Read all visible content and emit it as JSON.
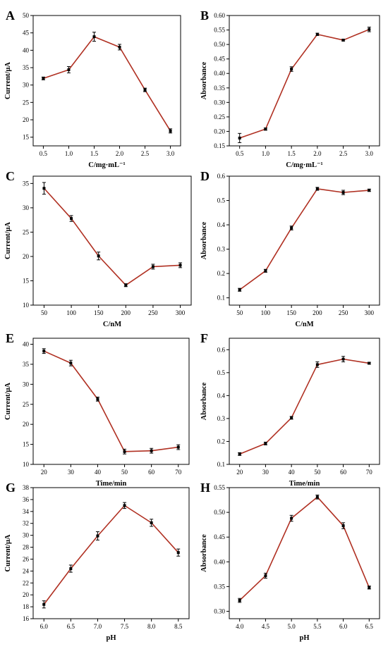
{
  "colors": {
    "line": "#b03022",
    "marker": "#000000",
    "errorbar": "#000000",
    "axis": "#000000",
    "background": "#ffffff"
  },
  "chart_data": [
    {
      "panel": "A",
      "type": "line",
      "xlabel": "C/mg·mL⁻¹",
      "ylabel": "Current/μA",
      "x": [
        0.5,
        1.0,
        1.5,
        2.0,
        2.5,
        3.0
      ],
      "y": [
        31.9,
        34.4,
        43.9,
        40.9,
        28.6,
        16.8
      ],
      "err": [
        0.4,
        0.9,
        1.3,
        0.8,
        0.5,
        0.6
      ],
      "xlim": [
        0.3,
        3.2
      ],
      "ylim": [
        12.5,
        50
      ],
      "xticks": [
        "0.5",
        "1.0",
        "1.5",
        "2.0",
        "2.5",
        "3.0"
      ],
      "yticks": [
        "15",
        "20",
        "25",
        "30",
        "35",
        "40",
        "45",
        "50"
      ],
      "grid": false,
      "legend": "none"
    },
    {
      "panel": "B",
      "type": "line",
      "xlabel": "C/mg·mL⁻¹",
      "ylabel": "Absorbance",
      "x": [
        0.5,
        1.0,
        1.5,
        2.0,
        2.5,
        3.0
      ],
      "y": [
        0.177,
        0.208,
        0.415,
        0.535,
        0.515,
        0.552
      ],
      "err": [
        0.016,
        0.004,
        0.008,
        0.004,
        0.003,
        0.008
      ],
      "xlim": [
        0.3,
        3.2
      ],
      "ylim": [
        0.15,
        0.6
      ],
      "xticks": [
        "0.5",
        "1.0",
        "1.5",
        "2.0",
        "2.5",
        "3.0"
      ],
      "yticks": [
        "0.15",
        "0.20",
        "0.25",
        "0.30",
        "0.35",
        "0.40",
        "0.45",
        "0.50",
        "0.55",
        "0.60"
      ],
      "grid": false,
      "legend": "none"
    },
    {
      "panel": "C",
      "type": "line",
      "xlabel": "C/nM",
      "ylabel": "Current/μA",
      "x": [
        50,
        100,
        150,
        200,
        250,
        300
      ],
      "y": [
        34.0,
        27.8,
        20.1,
        14.1,
        17.9,
        18.2
      ],
      "err": [
        1.2,
        0.6,
        0.8,
        0.3,
        0.5,
        0.5
      ],
      "xlim": [
        30,
        320
      ],
      "ylim": [
        10,
        36.5
      ],
      "xticks": [
        "50",
        "100",
        "150",
        "200",
        "250",
        "300"
      ],
      "yticks": [
        "10",
        "15",
        "20",
        "25",
        "30",
        "35"
      ],
      "grid": false,
      "legend": "none"
    },
    {
      "panel": "D",
      "type": "line",
      "xlabel": "C/nM",
      "ylabel": "Absorbance",
      "x": [
        50,
        100,
        150,
        200,
        250,
        300
      ],
      "y": [
        0.133,
        0.211,
        0.387,
        0.548,
        0.533,
        0.542
      ],
      "err": [
        0.006,
        0.006,
        0.008,
        0.006,
        0.009,
        0.005
      ],
      "xlim": [
        30,
        320
      ],
      "ylim": [
        0.07,
        0.6
      ],
      "xticks": [
        "50",
        "100",
        "150",
        "200",
        "250",
        "300"
      ],
      "yticks": [
        "0.1",
        "0.2",
        "0.3",
        "0.4",
        "0.5",
        "0.6"
      ],
      "grid": false,
      "legend": "none"
    },
    {
      "panel": "E",
      "type": "line",
      "xlabel": "Time/min",
      "ylabel": "Current/μA",
      "x": [
        20,
        30,
        40,
        50,
        60,
        70
      ],
      "y": [
        38.3,
        35.3,
        26.3,
        13.2,
        13.4,
        14.3
      ],
      "err": [
        0.6,
        0.7,
        0.5,
        0.6,
        0.6,
        0.6
      ],
      "xlim": [
        16,
        74
      ],
      "ylim": [
        10,
        41.5
      ],
      "xticks": [
        "20",
        "30",
        "40",
        "50",
        "60",
        "70"
      ],
      "yticks": [
        "10",
        "15",
        "20",
        "25",
        "30",
        "35",
        "40"
      ],
      "grid": false,
      "legend": "none"
    },
    {
      "panel": "F",
      "type": "line",
      "xlabel": "Time/min",
      "ylabel": "Absorbance",
      "x": [
        20,
        30,
        40,
        50,
        60,
        70
      ],
      "y": [
        0.145,
        0.191,
        0.303,
        0.535,
        0.559,
        0.541
      ],
      "err": [
        0.006,
        0.006,
        0.006,
        0.012,
        0.012,
        0.004
      ],
      "xlim": [
        16,
        74
      ],
      "ylim": [
        0.1,
        0.65
      ],
      "xticks": [
        "20",
        "30",
        "40",
        "50",
        "60",
        "70"
      ],
      "yticks": [
        "0.1",
        "0.2",
        "0.3",
        "0.4",
        "0.5",
        "0.6"
      ],
      "grid": false,
      "legend": "none"
    },
    {
      "panel": "G",
      "type": "line",
      "xlabel": "pH",
      "ylabel": "Current/μA",
      "x": [
        6.0,
        6.5,
        7.0,
        7.5,
        8.0,
        8.5
      ],
      "y": [
        18.4,
        24.4,
        29.9,
        35.0,
        32.1,
        27.1
      ],
      "err": [
        0.6,
        0.6,
        0.7,
        0.5,
        0.6,
        0.6
      ],
      "xlim": [
        5.8,
        8.7
      ],
      "ylim": [
        16,
        38
      ],
      "xticks": [
        "6.0",
        "6.5",
        "7.0",
        "7.5",
        "8.0",
        "8.5"
      ],
      "yticks": [
        "16",
        "18",
        "20",
        "22",
        "24",
        "26",
        "28",
        "30",
        "32",
        "34",
        "36",
        "38"
      ],
      "grid": false,
      "legend": "none"
    },
    {
      "panel": "H",
      "type": "line",
      "xlabel": "pH",
      "ylabel": "Absorbance",
      "x": [
        4.0,
        4.5,
        5.0,
        5.5,
        6.0,
        6.5
      ],
      "y": [
        0.322,
        0.372,
        0.488,
        0.531,
        0.473,
        0.348
      ],
      "err": [
        0.004,
        0.005,
        0.006,
        0.004,
        0.006,
        0.003
      ],
      "xlim": [
        3.8,
        6.7
      ],
      "ylim": [
        0.285,
        0.55
      ],
      "xticks": [
        "4.0",
        "4.5",
        "5.0",
        "5.5",
        "6.0",
        "6.5"
      ],
      "yticks": [
        "0.30",
        "0.35",
        "0.40",
        "0.45",
        "0.50",
        "0.55"
      ],
      "grid": false,
      "legend": "none"
    }
  ]
}
